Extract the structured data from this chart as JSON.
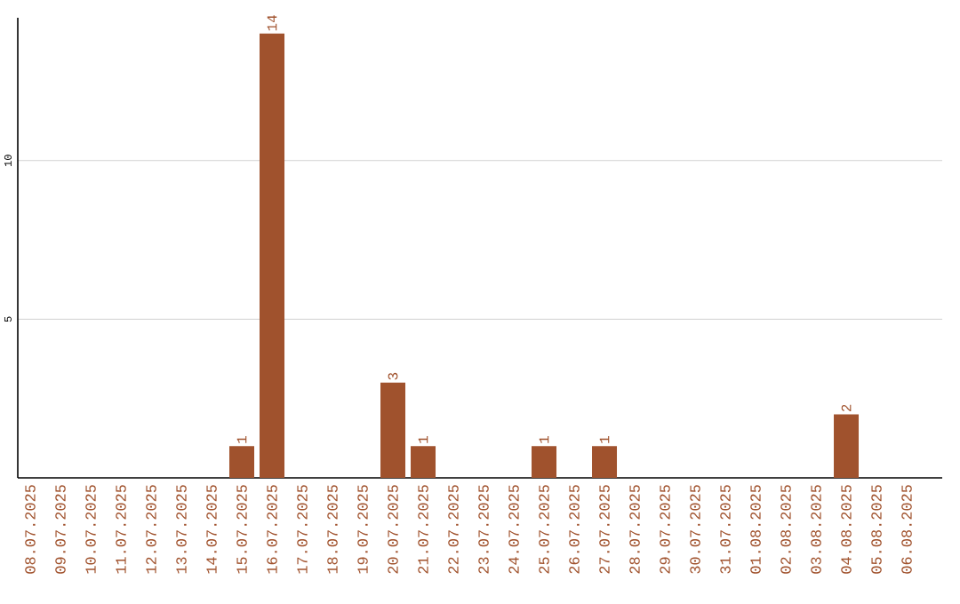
{
  "chart_data": {
    "type": "bar",
    "categories": [
      "08.07.2025",
      "09.07.2025",
      "10.07.2025",
      "11.07.2025",
      "12.07.2025",
      "13.07.2025",
      "14.07.2025",
      "15.07.2025",
      "16.07.2025",
      "17.07.2025",
      "18.07.2025",
      "19.07.2025",
      "20.07.2025",
      "21.07.2025",
      "22.07.2025",
      "23.07.2025",
      "24.07.2025",
      "25.07.2025",
      "26.07.2025",
      "27.07.2025",
      "28.07.2025",
      "29.07.2025",
      "30.07.2025",
      "31.07.2025",
      "01.08.2025",
      "02.08.2025",
      "03.08.2025",
      "04.08.2025",
      "05.08.2025",
      "06.08.2025"
    ],
    "values": [
      0,
      0,
      0,
      0,
      0,
      0,
      0,
      1,
      14,
      0,
      0,
      0,
      3,
      1,
      0,
      0,
      0,
      1,
      0,
      1,
      0,
      0,
      0,
      0,
      0,
      0,
      0,
      2,
      0,
      0
    ],
    "value_labels": [
      null,
      null,
      null,
      null,
      null,
      null,
      null,
      "1",
      "14",
      null,
      null,
      null,
      "3",
      "1",
      null,
      null,
      null,
      "1",
      null,
      "1",
      null,
      null,
      null,
      null,
      null,
      null,
      null,
      "2",
      null,
      null
    ],
    "color": "#a0522d",
    "ylim": [
      0,
      14.5
    ],
    "yticks": [
      5,
      10
    ],
    "grid": "y"
  }
}
